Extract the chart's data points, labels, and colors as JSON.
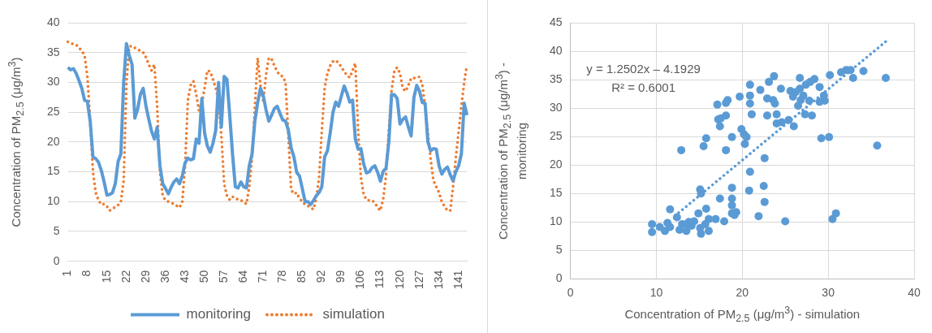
{
  "chart_data": [
    {
      "type": "line",
      "ylabel": "Concentration of PM$_{2.5}$ (μg/m$^{3}$)",
      "categories": [
        "1",
        null,
        null,
        null,
        null,
        null,
        null,
        "8",
        null,
        null,
        null,
        null,
        null,
        null,
        "15",
        null,
        null,
        null,
        null,
        null,
        null,
        "22",
        null,
        null,
        null,
        null,
        null,
        null,
        "29",
        null,
        null,
        null,
        null,
        null,
        null,
        "36",
        null,
        null,
        null,
        null,
        null,
        null,
        "43",
        null,
        null,
        null,
        null,
        null,
        null,
        "50",
        null,
        null,
        null,
        null,
        null,
        null,
        "57",
        null,
        null,
        null,
        null,
        null,
        null,
        "64",
        null,
        null,
        null,
        null,
        null,
        null,
        "71",
        null,
        null,
        null,
        null,
        null,
        null,
        "78",
        null,
        null,
        null,
        null,
        null,
        null,
        "85",
        null,
        null,
        null,
        null,
        null,
        null,
        "92",
        null,
        null,
        null,
        null,
        null,
        null,
        "99",
        null,
        null,
        null,
        null,
        null,
        null,
        "106",
        null,
        null,
        null,
        null,
        null,
        null,
        "113",
        null,
        null,
        null,
        null,
        null,
        null,
        "120",
        null,
        null,
        null,
        null,
        null,
        null,
        "127",
        null,
        null,
        null,
        null,
        null,
        null,
        "134",
        null,
        null,
        null,
        null,
        null,
        null,
        "141",
        null,
        null,
        null
      ],
      "series": [
        {
          "name": "monitoring",
          "color": "#5b9bd5",
          "line_style": "solid",
          "marker": "none",
          "values": [
            32.5,
            32.1,
            32.3,
            31.5,
            30.3,
            29,
            27,
            26.8,
            23.5,
            17.5,
            17.2,
            16.6,
            15.2,
            13.3,
            11.1,
            11.2,
            11.5,
            13,
            16.7,
            18,
            30,
            36.5,
            34.5,
            33,
            24,
            25.5,
            28,
            29,
            26,
            23.8,
            21.8,
            20.5,
            22.5,
            16,
            13,
            12.2,
            11.3,
            12.4,
            13.3,
            13.8,
            13,
            14.3,
            16.5,
            17.3,
            17,
            17.2,
            20.5,
            19.8,
            27.3,
            21.5,
            19.3,
            18.3,
            19.8,
            22,
            30,
            22.5,
            31,
            30.5,
            24.5,
            18,
            12.5,
            12.3,
            13.3,
            12.5,
            12.3,
            16,
            18,
            23.5,
            26.6,
            29,
            27.8,
            25.4,
            23.5,
            24.5,
            25.6,
            26,
            24.8,
            23.7,
            23.5,
            22,
            19,
            17.5,
            14.9,
            14.3,
            12.2,
            10,
            10,
            9.5,
            10.2,
            11,
            11.5,
            12.5,
            17.5,
            18.5,
            21.5,
            25,
            26.7,
            26,
            27.7,
            29.4,
            28.2,
            26.7,
            27,
            20.5,
            18.8,
            18.9,
            16.3,
            14.8,
            15,
            15.7,
            16,
            14.9,
            13.4,
            15.1,
            15.6,
            20,
            28,
            27.9,
            27.3,
            23,
            23.8,
            24.2,
            22.5,
            21,
            27.5,
            29.5,
            28.5,
            26.6,
            26.5,
            20,
            18.5,
            18.9,
            18.8,
            16,
            14.6,
            15.4,
            15.8,
            14.5,
            13.5,
            15,
            16,
            18,
            26.5,
            24.5
          ]
        },
        {
          "name": "simulation",
          "color": "#ed7d31",
          "line_style": "dotted",
          "marker": "none",
          "values": [
            36.8,
            36.6,
            36.4,
            36.3,
            35.8,
            35.3,
            34.5,
            31,
            23.5,
            15,
            11.5,
            10.2,
            9.5,
            9.6,
            9.2,
            8.5,
            8.8,
            9.1,
            9.4,
            10,
            13.5,
            30,
            36,
            36.1,
            35.8,
            35.5,
            35.3,
            35,
            34.2,
            33,
            32,
            33,
            26,
            15,
            11,
            10.2,
            10,
            9.8,
            9.6,
            9.3,
            9,
            10,
            16,
            27,
            29.5,
            30.2,
            28,
            25.2,
            26.5,
            29,
            32,
            31.8,
            30.5,
            29,
            27,
            21,
            13,
            11,
            10.3,
            10.8,
            10.7,
            10.3,
            10.2,
            10,
            9.6,
            12.5,
            17.3,
            26,
            34.1,
            29.5,
            26.8,
            31.2,
            34.1,
            33.9,
            32.8,
            31.8,
            31.2,
            31,
            30,
            21,
            12,
            11.3,
            11.5,
            10.5,
            10,
            9.5,
            9.3,
            9,
            8.7,
            10.5,
            14,
            22,
            29,
            31.5,
            32.8,
            33.5,
            33.7,
            33.2,
            32.6,
            31.8,
            31.2,
            30.8,
            32,
            33.2,
            22,
            14,
            11.2,
            10.3,
            10.2,
            10.2,
            9.8,
            9,
            8.5,
            10.5,
            14.5,
            22,
            28.7,
            32,
            32.5,
            31.5,
            29,
            28.5,
            29.5,
            30.7,
            30.7,
            30.9,
            30.9,
            29.6,
            26,
            21.5,
            17,
            13.5,
            12.5,
            11.5,
            9.9,
            9.2,
            8.5,
            8.5,
            12.4,
            17.3,
            21.7,
            26,
            30,
            32.9
          ]
        }
      ],
      "ylim": [
        0,
        40
      ],
      "yticks": [
        0,
        5,
        10,
        15,
        20,
        25,
        30,
        35,
        40
      ],
      "grid": "y",
      "legend": "bottom"
    },
    {
      "type": "scatter",
      "xlabel": "Concentration of PM$_{2.5}$ (μg/m$^{3}$) - simulation",
      "ylabel": "Concentration of PM$_{2.5}$ (μg/m$^{3}$) - monitoring",
      "series": [
        {
          "color": "#5b9bd5",
          "marker": "circle",
          "x": [
            9.5,
            9.5,
            10.4,
            11,
            11.3,
            11.6,
            11.6,
            12.4,
            12.7,
            13,
            13.5,
            13.8,
            14.1,
            14.9,
            15.1,
            15.2,
            15.7,
            16.1,
            16.1,
            16.9,
            17.9,
            15.8,
            12.9,
            15.1,
            15.2,
            15.5,
            15.8,
            17.4,
            18.8,
            18.8,
            18.8,
            18.8,
            19.1,
            19.3,
            18.1,
            18.8,
            17.1,
            18.1,
            18.3,
            17.2,
            17.5,
            17.4,
            18.1,
            19.7,
            19.9,
            20.2,
            20.5,
            20.3,
            20.8,
            20.9,
            20.9,
            20.9,
            20.9,
            21.1,
            21.9,
            22.1,
            22.6,
            22.5,
            22.6,
            22.9,
            22.9,
            23.1,
            23.7,
            23.6,
            24,
            24,
            24.5,
            24.6,
            25,
            25.4,
            25.6,
            25.9,
            26,
            26.7,
            26.5,
            26.7,
            27.1,
            27.3,
            27.4,
            27.8,
            28.1,
            27.9,
            28.4,
            29,
            29,
            29.2,
            29.5,
            29.6,
            30.1,
            30.2,
            30.5,
            30.9,
            31.5,
            32.1,
            32.6,
            32.9,
            34.1,
            35.7,
            36.7,
            23.8,
            26.2,
            26.8,
            13.5,
            14.4
          ],
          "values": [
            8.2,
            9.6,
            9.1,
            8.4,
            9.8,
            9.1,
            12.2,
            10.8,
            8.6,
            9.6,
            8.4,
            10,
            9.3,
            11.5,
            8.9,
            7.9,
            9.6,
            8.4,
            10.5,
            10.5,
            10.1,
            12.3,
            22.6,
            15.7,
            15,
            23.3,
            24.7,
            14.1,
            16,
            14.1,
            12.9,
            11.5,
            11.2,
            11.7,
            22.6,
            24.9,
            30.6,
            30.9,
            31.4,
            28,
            28.2,
            26.8,
            28.7,
            32,
            26.3,
            25.4,
            24.9,
            23.7,
            15.5,
            18.8,
            32.2,
            30.8,
            34.1,
            28.9,
            11,
            33.2,
            21.2,
            16.3,
            13.5,
            28.7,
            31.7,
            34.6,
            35.6,
            31.4,
            28.9,
            27.3,
            33.4,
            27.5,
            10.1,
            27.9,
            33,
            32,
            26.8,
            35.3,
            30.4,
            33.4,
            32.2,
            28.9,
            34.1,
            31.3,
            28.7,
            34.6,
            35.1,
            33.7,
            31.1,
            24.7,
            32.2,
            31.3,
            24.9,
            35.8,
            10.5,
            11.5,
            36.3,
            36.7,
            36.7,
            35.3,
            36.5,
            23.4,
            35.3,
            30.8,
            32.8,
            31.4,
            9.6,
            10.1
          ]
        },
        {
          "type": "line",
          "color": "#5b9bd5",
          "line_style": "dotted",
          "marker": "none",
          "x": [
            12.6,
            36.7
          ],
          "values": [
            11.6,
            41.7
          ]
        }
      ],
      "xlim": [
        0,
        40
      ],
      "xticks": [
        0,
        10,
        20,
        30,
        40
      ],
      "ylim": [
        0,
        45
      ],
      "yticks": [
        0,
        5,
        10,
        15,
        20,
        25,
        30,
        35,
        40,
        45
      ],
      "grid": true,
      "legend": false,
      "annotations": [
        "y = 1.2502x – 4.1929",
        "R² = 0.6001"
      ]
    }
  ]
}
